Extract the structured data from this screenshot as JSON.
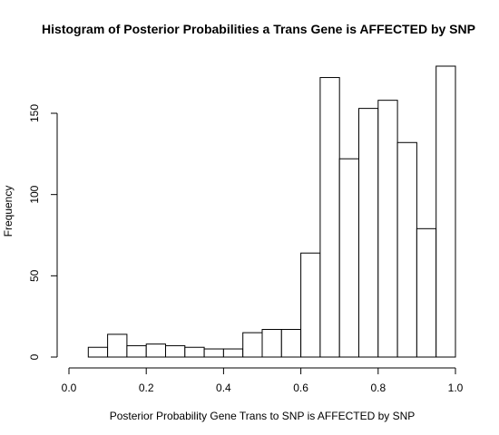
{
  "chart_data": {
    "type": "bar",
    "title": "Histogram of Posterior Probabilities a Trans Gene is AFFECTED by SNP",
    "xlabel": "Posterior Probability Gene Trans to SNP is AFFECTED by SNP",
    "ylabel": "Frequency",
    "xlim": [
      0.0,
      1.0
    ],
    "ylim": [
      0,
      175
    ],
    "x_ticks": [
      "0.0",
      "0.2",
      "0.4",
      "0.6",
      "0.8",
      "1.0"
    ],
    "y_ticks": [
      "0",
      "50",
      "100",
      "150"
    ],
    "bin_width": 0.05,
    "bins": [
      {
        "start": 0.05,
        "end": 0.1,
        "value": 6
      },
      {
        "start": 0.1,
        "end": 0.15,
        "value": 14
      },
      {
        "start": 0.15,
        "end": 0.2,
        "value": 7
      },
      {
        "start": 0.2,
        "end": 0.25,
        "value": 8
      },
      {
        "start": 0.25,
        "end": 0.3,
        "value": 7
      },
      {
        "start": 0.3,
        "end": 0.35,
        "value": 6
      },
      {
        "start": 0.35,
        "end": 0.4,
        "value": 5
      },
      {
        "start": 0.4,
        "end": 0.45,
        "value": 5
      },
      {
        "start": 0.45,
        "end": 0.5,
        "value": 15
      },
      {
        "start": 0.5,
        "end": 0.55,
        "value": 17
      },
      {
        "start": 0.55,
        "end": 0.6,
        "value": 17
      },
      {
        "start": 0.6,
        "end": 0.65,
        "value": 64
      },
      {
        "start": 0.65,
        "end": 0.7,
        "value": 172
      },
      {
        "start": 0.7,
        "end": 0.75,
        "value": 122
      },
      {
        "start": 0.75,
        "end": 0.8,
        "value": 153
      },
      {
        "start": 0.8,
        "end": 0.85,
        "value": 158
      },
      {
        "start": 0.85,
        "end": 0.9,
        "value": 132
      },
      {
        "start": 0.9,
        "end": 0.95,
        "value": 79
      },
      {
        "start": 0.95,
        "end": 1.0,
        "value": 179
      }
    ],
    "grid": false,
    "legend": "none"
  }
}
